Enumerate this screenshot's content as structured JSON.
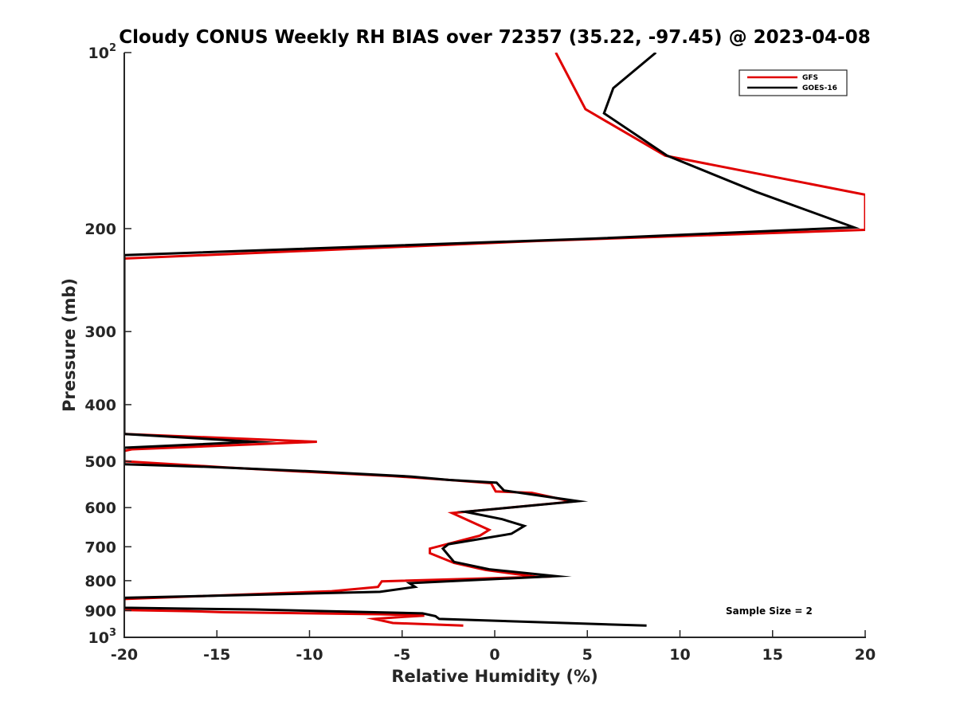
{
  "chart_data": {
    "type": "line",
    "title": "Cloudy CONUS Weekly RH BIAS over 72357 (35.22, -97.45) @ 2023-04-08",
    "xlabel": "Relative Humidity (%)",
    "ylabel": "Pressure (mb)",
    "xlim": [
      -20,
      20
    ],
    "ylim": [
      100,
      1000
    ],
    "y_scale": "log",
    "y_reversed": true,
    "grid": false,
    "legend_position": "top-right",
    "x_ticks": [
      "-20",
      "-15",
      "-10",
      "-5",
      "0",
      "5",
      "10",
      "15",
      "20"
    ],
    "y_ticks": [
      {
        "value": 100,
        "base": "10",
        "exp": "2"
      },
      {
        "value": 200,
        "label": "200"
      },
      {
        "value": 300,
        "label": "300"
      },
      {
        "value": 400,
        "label": "400"
      },
      {
        "value": 500,
        "label": "500"
      },
      {
        "value": 600,
        "label": "600"
      },
      {
        "value": 700,
        "label": "700"
      },
      {
        "value": 800,
        "label": "800"
      },
      {
        "value": 900,
        "label": "900"
      },
      {
        "value": 1000,
        "base": "10",
        "exp": "3"
      }
    ],
    "series": [
      {
        "name": "GFS",
        "color": "#e00000",
        "points": [
          [
            3.3,
            100
          ],
          [
            4.9,
            125
          ],
          [
            9.2,
            150
          ],
          [
            20,
            175
          ],
          [
            20,
            201
          ],
          [
            2.3,
            210
          ],
          [
            -20,
            225
          ],
          [
            -20,
            449
          ],
          [
            -9.6,
            463
          ],
          [
            -19.6,
            477
          ],
          [
            -20,
            480
          ],
          [
            -20,
            500
          ],
          [
            -14.6,
            512
          ],
          [
            -10.8,
            520
          ],
          [
            -5.5,
            530
          ],
          [
            -2.5,
            538
          ],
          [
            -0.2,
            545
          ],
          [
            0.05,
            563
          ],
          [
            2,
            566
          ],
          [
            4.2,
            586
          ],
          [
            -2.3,
            613
          ],
          [
            -1.8,
            623
          ],
          [
            -0.3,
            655
          ],
          [
            -0.8,
            670
          ],
          [
            -3.5,
            705
          ],
          [
            -3.5,
            718
          ],
          [
            -2.2,
            746
          ],
          [
            -0.5,
            767
          ],
          [
            2.3,
            788
          ],
          [
            -6.1,
            802
          ],
          [
            -6.3,
            820
          ],
          [
            -8.8,
            834
          ],
          [
            -20,
            860
          ],
          [
            -20,
            898
          ],
          [
            -16.5,
            902
          ],
          [
            -14.6,
            906
          ],
          [
            -6.2,
            913
          ],
          [
            -3.8,
            918
          ],
          [
            -4.8,
            922
          ],
          [
            -6.5,
            930
          ],
          [
            -5.5,
            945
          ],
          [
            -1.7,
            955
          ]
        ]
      },
      {
        "name": "GOES-16",
        "color": "#000000",
        "points": [
          [
            8.7,
            100
          ],
          [
            6.4,
            115
          ],
          [
            5.9,
            127
          ],
          [
            9.3,
            150
          ],
          [
            14.1,
            173
          ],
          [
            19.4,
            199
          ],
          [
            5.3,
            208
          ],
          [
            -20,
            222
          ],
          [
            -20,
            449
          ],
          [
            -13,
            463
          ],
          [
            -20,
            474
          ],
          [
            -20,
            506
          ],
          [
            -15.5,
            511
          ],
          [
            -10,
            520
          ],
          [
            -4.5,
            531
          ],
          [
            -2.5,
            538
          ],
          [
            0.1,
            544
          ],
          [
            0.5,
            561
          ],
          [
            4.5,
            585
          ],
          [
            -1.6,
            610
          ],
          [
            0.4,
            628
          ],
          [
            1.6,
            645
          ],
          [
            0.9,
            665
          ],
          [
            -2.5,
            693
          ],
          [
            -2.8,
            705
          ],
          [
            -2.5,
            724
          ],
          [
            -2.2,
            743
          ],
          [
            -0.3,
            765
          ],
          [
            3.3,
            786
          ],
          [
            -4.6,
            808
          ],
          [
            -4.3,
            820
          ],
          [
            -6.2,
            836
          ],
          [
            -20,
            856
          ],
          [
            -20,
            890
          ],
          [
            -17,
            893
          ],
          [
            -13,
            896
          ],
          [
            -3.9,
            910
          ],
          [
            -3.2,
            920
          ],
          [
            -3.0,
            930
          ],
          [
            8.2,
            955
          ]
        ]
      }
    ],
    "annotations": [
      "Sample Size = 2"
    ]
  }
}
